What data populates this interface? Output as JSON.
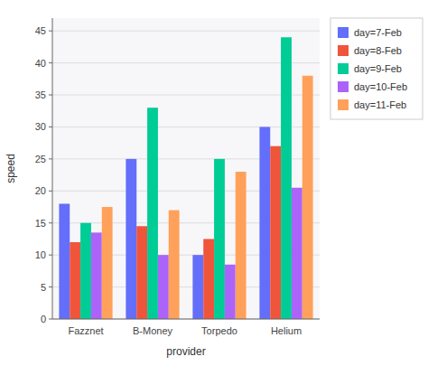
{
  "chart_data": {
    "type": "bar",
    "xlabel": "provider",
    "ylabel": "speed",
    "categories": [
      "Fazznet",
      "B-Money",
      "Torpedo",
      "Helium"
    ],
    "series": [
      {
        "name": "day=7-Feb",
        "color": "#636efa",
        "values": [
          18,
          25,
          10,
          30
        ]
      },
      {
        "name": "day=8-Feb",
        "color": "#ef553b",
        "values": [
          12,
          14.5,
          12.5,
          27
        ]
      },
      {
        "name": "day=9-Feb",
        "color": "#00cc96",
        "values": [
          15,
          33,
          25,
          44
        ]
      },
      {
        "name": "day=10-Feb",
        "color": "#ab63fa",
        "values": [
          13.5,
          10,
          8.5,
          20.5
        ]
      },
      {
        "name": "day=11-Feb",
        "color": "#ffa15a",
        "values": [
          17.5,
          17,
          23,
          38
        ]
      }
    ],
    "ylim": [
      0,
      47
    ],
    "yticks": [
      0,
      5,
      10,
      15,
      20,
      25,
      30,
      35,
      40,
      45
    ],
    "grid": true,
    "legend": "right"
  }
}
